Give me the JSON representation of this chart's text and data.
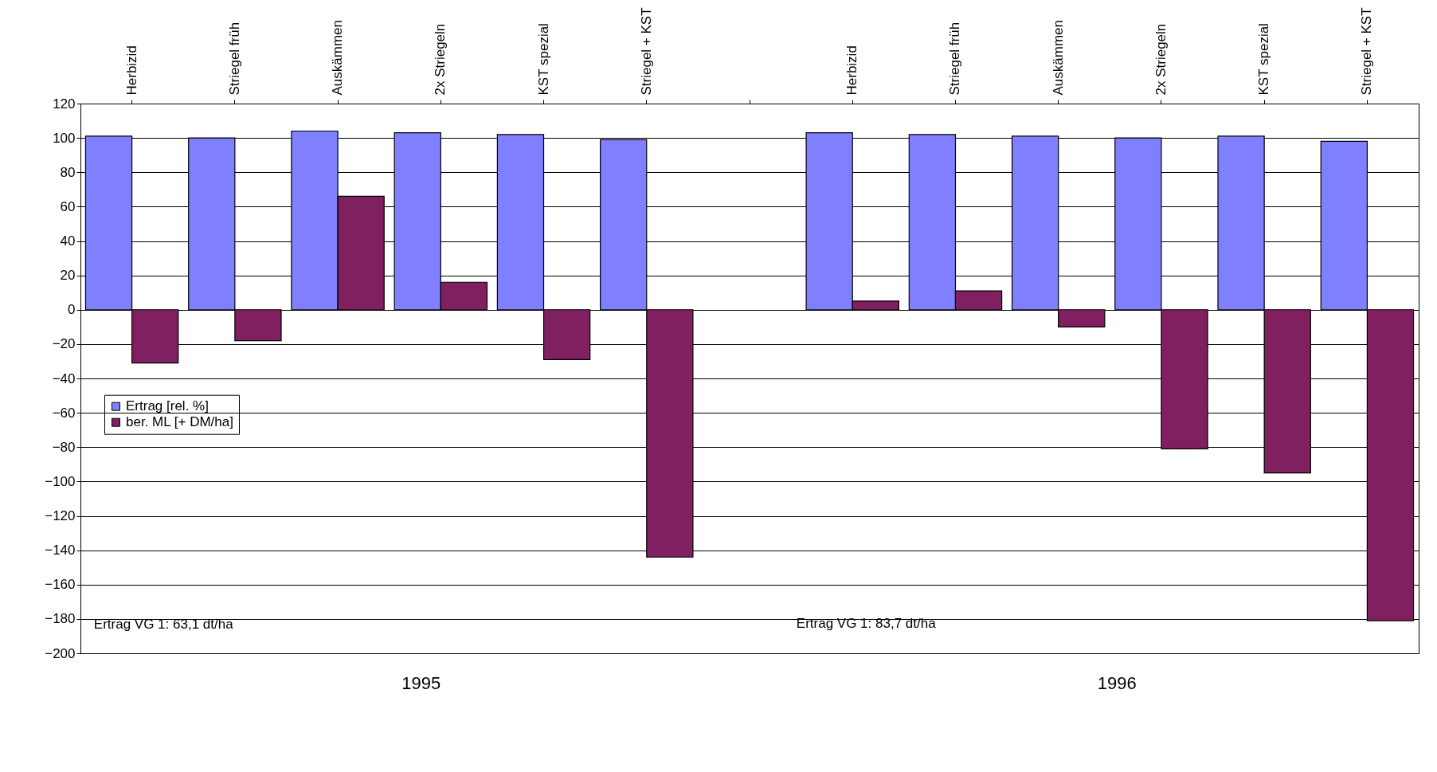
{
  "chart_data": {
    "type": "bar",
    "categories": [
      "Herbizid",
      "Striegel früh",
      "Auskämmen",
      "2x Striegeln",
      "KST spezial",
      "Striegel + KST",
      null,
      "Herbizid",
      "Striegel früh",
      "Auskämmen",
      "2x Striegeln",
      "KST spezial",
      "Striegel + KST"
    ],
    "series": [
      {
        "name": "Ertrag [rel. %]",
        "color": "#8080ff",
        "values": [
          101,
          100,
          104,
          103,
          102,
          99,
          null,
          103,
          102,
          101,
          100,
          101,
          98
        ]
      },
      {
        "name": "ber. ML [+ DM/ha]",
        "color": "#802060",
        "values": [
          -31,
          -18,
          66,
          16,
          -29,
          -144,
          null,
          5,
          11,
          -10,
          -81,
          -95,
          -181
        ]
      }
    ],
    "ylim": [
      -200,
      120
    ],
    "yticks": [
      -200,
      -180,
      -160,
      -140,
      -120,
      -100,
      -80,
      -60,
      -40,
      -20,
      0,
      20,
      40,
      60,
      80,
      100,
      120
    ],
    "grid": "y",
    "legend": "bottom left",
    "annotations": [
      "1995",
      "1996",
      "Ertrag VG 1: 63,1 dt/ha",
      "Ertrag VG 1: 83,7 dt/ha"
    ]
  }
}
